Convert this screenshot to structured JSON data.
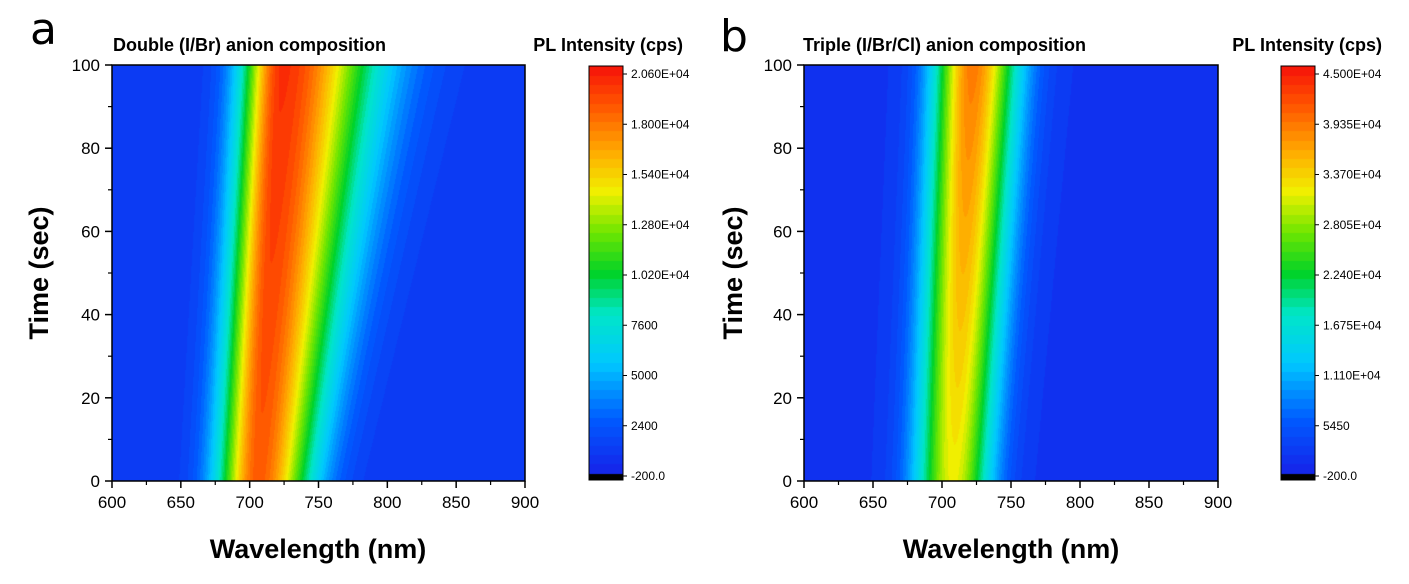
{
  "chart_data": [
    {
      "type": "heatmap",
      "panel_label": "a",
      "title": "Double (I/Br) anion composition",
      "colorbar_title": "PL Intensity (cps)",
      "xlabel": "Wavelength (nm)",
      "ylabel": "Time (sec)",
      "xlim": [
        600,
        900
      ],
      "ylim": [
        0,
        100
      ],
      "x_ticks": [
        "600",
        "650",
        "700",
        "750",
        "800",
        "850",
        "900"
      ],
      "y_ticks": [
        "0",
        "20",
        "40",
        "60",
        "80",
        "100"
      ],
      "colorbar_range": [
        -200,
        20600
      ],
      "colorbar_ticks": [
        "2.060E+04",
        "1.800E+04",
        "1.540E+04",
        "1.280E+04",
        "1.020E+04",
        "7600",
        "5000",
        "2400",
        "-200.0"
      ],
      "peak": {
        "center_t0_nm": 706,
        "center_t100_nm": 724,
        "sigma_left_nm": 21,
        "sigma_right_t0_nm": 28,
        "sigma_right_t100_nm": 48,
        "amplitude_cps": 18800,
        "baseline_cps": 800
      },
      "peak_intensity_cps": [
        {
          "t": 0,
          "v": 18500
        },
        {
          "t": 100,
          "v": 19800
        }
      ]
    },
    {
      "type": "heatmap",
      "panel_label": "b",
      "title": "Triple (I/Br/Cl) anion composition",
      "colorbar_title": "PL Intensity (cps)",
      "xlabel": "Wavelength (nm)",
      "ylabel": "Time (sec)",
      "xlim": [
        600,
        900
      ],
      "ylim": [
        0,
        100
      ],
      "x_ticks": [
        "600",
        "650",
        "700",
        "750",
        "800",
        "850",
        "900"
      ],
      "y_ticks": [
        "0",
        "20",
        "40",
        "60",
        "80",
        "100"
      ],
      "colorbar_range": [
        -200,
        45000
      ],
      "colorbar_ticks": [
        "4.500E+04",
        "3.935E+04",
        "3.370E+04",
        "2.805E+04",
        "2.240E+04",
        "1.675E+04",
        "1.110E+04",
        "5450",
        "-200.0"
      ],
      "peak": {
        "center_t0_nm": 708,
        "center_t100_nm": 722,
        "sigma_left_nm": 20,
        "sigma_right_t0_nm": 20,
        "sigma_right_t100_nm": 24,
        "amplitude_cps": 29500,
        "baseline_cps": 1500
      },
      "peak_intensity_cps": [
        {
          "t": 0,
          "v": 31000
        },
        {
          "t": 100,
          "v": 38500
        }
      ]
    }
  ]
}
